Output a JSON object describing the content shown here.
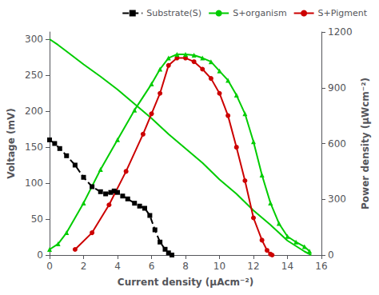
{
  "chart_data": {
    "type": "line",
    "xlabel": "Current density (μAcm⁻²)",
    "ylabel": "Voltage (mV)",
    "y2label": "Power density (μWcm⁻²)",
    "xlim": [
      0,
      16
    ],
    "ylim": [
      0,
      310
    ],
    "y2lim": [
      0,
      1200
    ],
    "xticks": [
      0,
      2,
      4,
      6,
      8,
      10,
      12,
      14,
      16
    ],
    "yticks": [
      0,
      50,
      100,
      150,
      200,
      250,
      300
    ],
    "y2ticks": [
      0,
      300,
      600,
      900,
      1200
    ],
    "grid": false,
    "legend": "upper right",
    "series": [
      {
        "name": "Substrate(S)",
        "color": "#000000",
        "marker": "square",
        "line_style": "dashed",
        "x": [
          0,
          0.3,
          0.6,
          1.0,
          1.5,
          2.0,
          2.5,
          3.0,
          3.3,
          3.6,
          3.8,
          4.0,
          4.3,
          4.6,
          5.0,
          5.3,
          5.6,
          5.9,
          6.2,
          6.5,
          6.8,
          7.0,
          7.2
        ],
        "values": [
          160,
          155,
          148,
          138,
          125,
          108,
          95,
          88,
          85,
          87,
          89,
          87,
          82,
          78,
          72,
          68,
          65,
          55,
          35,
          18,
          8,
          3,
          0
        ]
      },
      {
        "name": "S+organism",
        "color": "#00cc00",
        "marker": "none",
        "line_style": "solid",
        "x": [
          0,
          0.5,
          1.0,
          2.0,
          3.0,
          4.0,
          5.0,
          6.0,
          7.0,
          8.0,
          9.0,
          10.0,
          11.0,
          12.0,
          13.0,
          14.0,
          15.0,
          15.4
        ],
        "values": [
          300,
          292,
          283,
          265,
          248,
          230,
          210,
          190,
          168,
          148,
          128,
          105,
          85,
          62,
          42,
          20,
          5,
          0
        ]
      },
      {
        "name": "S+Pigment",
        "color": "#cc0000",
        "marker": "circle",
        "line_style": "solid",
        "axis": "y2",
        "x": [
          1.5,
          2.5,
          3.5,
          4.5,
          5.5,
          6.0,
          6.5,
          7.0,
          7.5,
          8.0,
          8.5,
          9.0,
          9.5,
          10.0,
          10.5,
          11.0,
          11.5,
          12.0,
          12.5,
          12.8,
          13.0,
          13.1
        ],
        "values": [
          30,
          120,
          270,
          450,
          650,
          760,
          870,
          1020,
          1060,
          1060,
          1040,
          1000,
          950,
          870,
          750,
          580,
          400,
          200,
          80,
          25,
          5,
          0
        ]
      },
      {
        "name": "S+organism",
        "color": "#00cc00",
        "marker": "triangle",
        "line_style": "solid",
        "axis": "y2",
        "x": [
          0,
          0.5,
          1.0,
          2.0,
          3.0,
          4.0,
          5.0,
          6.0,
          6.5,
          7.0,
          7.5,
          8.0,
          8.5,
          9.0,
          9.5,
          10.0,
          10.5,
          11.0,
          11.5,
          12.0,
          12.5,
          13.0,
          13.5,
          14.0,
          14.5,
          15.0,
          15.3
        ],
        "values": [
          30,
          60,
          120,
          280,
          460,
          620,
          780,
          920,
          1000,
          1060,
          1080,
          1080,
          1075,
          1060,
          1040,
          990,
          940,
          860,
          760,
          610,
          430,
          280,
          170,
          100,
          70,
          45,
          20
        ]
      }
    ]
  }
}
